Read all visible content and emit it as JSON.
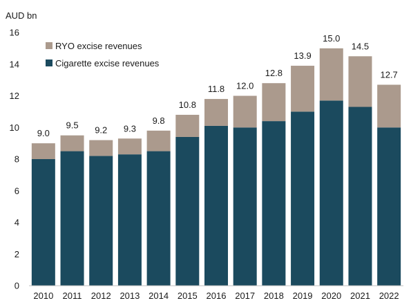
{
  "chart_data": {
    "type": "bar",
    "stacked": true,
    "unit_label": "AUD bn",
    "categories": [
      "2010",
      "2011",
      "2012",
      "2013",
      "2014",
      "2015",
      "2016",
      "2017",
      "2018",
      "2019",
      "2020",
      "2021",
      "2022"
    ],
    "series": [
      {
        "name": "Cigarette excise revenues",
        "color": "#1b4a5e",
        "values": [
          8.0,
          8.5,
          8.2,
          8.3,
          8.5,
          9.4,
          10.1,
          10.0,
          10.4,
          11.0,
          11.7,
          11.3,
          10.0
        ]
      },
      {
        "name": "RYO excise revenues",
        "color": "#ab9a8d",
        "values": [
          1.0,
          1.0,
          1.0,
          1.0,
          1.3,
          1.4,
          1.7,
          2.0,
          2.4,
          2.9,
          3.3,
          3.2,
          2.7
        ]
      }
    ],
    "totals": [
      "9.0",
      "9.5",
      "9.2",
      "9.3",
      "9.8",
      "10.8",
      "11.8",
      "12.0",
      "12.8",
      "13.9",
      "15.0",
      "14.5",
      "12.7"
    ],
    "ylim": [
      0,
      16
    ],
    "yticks": [
      0,
      2,
      4,
      6,
      8,
      10,
      12,
      14,
      16
    ],
    "grid": false,
    "legend_position": "top-left",
    "legend_order": [
      1,
      0
    ],
    "xlabel": "",
    "ylabel": ""
  }
}
